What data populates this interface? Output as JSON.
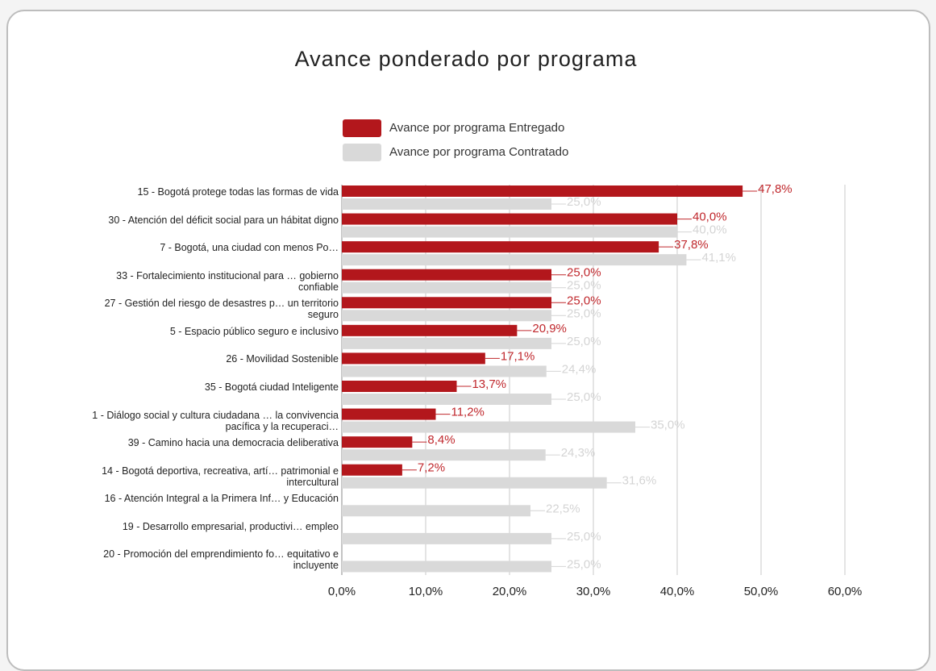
{
  "chart_data": {
    "type": "hbar",
    "title": "Avance ponderado por programa",
    "categories": [
      "15 - Bogotá protege todas las formas de vida",
      "30 - Atención del déficit social para un hábitat digno",
      "7 - Bogotá, una ciudad con menos Po…",
      "33 - Fortalecimiento institucional para … gobierno confiable",
      "27 - Gestión del riesgo de desastres p… un territorio seguro",
      "5 - Espacio público seguro e inclusivo",
      "26 - Movilidad Sostenible",
      "35 - Bogotá ciudad Inteligente",
      "1 - Diálogo social y cultura ciudadana … la convivencia pacífica y la recuperaci…",
      "39 - Camino hacia una democracia deliberativa",
      "14 - Bogotá deportiva, recreativa, artí… patrimonial e intercultural",
      "16 - Atención Integral a la Primera Inf… y Educación",
      "19 - Desarrollo empresarial, productivi… empleo",
      "20 - Promoción del emprendimiento fo… equitativo e incluyente"
    ],
    "series": [
      {
        "name": "Avance por programa Entregado",
        "color": "#b3171c",
        "values": [
          47.8,
          40.0,
          37.8,
          25.0,
          25.0,
          20.9,
          17.1,
          13.7,
          11.2,
          8.4,
          7.2,
          null,
          null,
          null
        ],
        "value_labels": [
          "47,8%",
          "40,0%",
          "37,8%",
          "25,0%",
          "25,0%",
          "20,9%",
          "17,1%",
          "13,7%",
          "11,2%",
          "8,4%",
          "7,2%",
          null,
          null,
          null
        ]
      },
      {
        "name": "Avance por programa Contratado",
        "color": "#d9d9d9",
        "values": [
          25.0,
          40.0,
          41.1,
          25.0,
          25.0,
          25.0,
          24.4,
          25.0,
          35.0,
          24.3,
          31.6,
          22.5,
          25.0,
          25.0
        ],
        "value_labels": [
          "25,0%",
          "40,0%",
          "41,1%",
          "25,0%",
          "25,0%",
          "25,0%",
          "24,4%",
          "25,0%",
          "35,0%",
          "24,3%",
          "31,6%",
          "22,5%",
          "25,0%",
          "25,0%"
        ]
      }
    ],
    "xlim": [
      0,
      60
    ],
    "xticks": [
      {
        "value": 0,
        "label": "0,0%"
      },
      {
        "value": 10,
        "label": "10,0%"
      },
      {
        "value": 20,
        "label": "20,0%"
      },
      {
        "value": 30,
        "label": "30,0%"
      },
      {
        "value": 40,
        "label": "40,0%"
      },
      {
        "value": 50,
        "label": "50,0%"
      },
      {
        "value": 60,
        "label": "60,0%"
      }
    ],
    "grid": true
  }
}
